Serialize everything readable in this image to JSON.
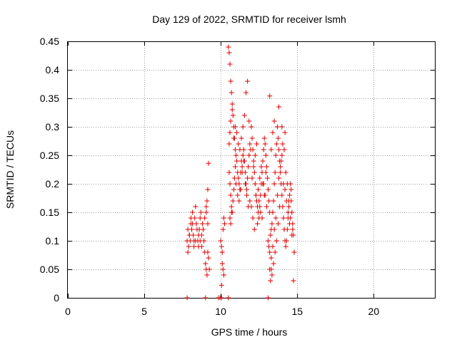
{
  "chart_data": {
    "type": "scatter",
    "title": "Day 129 of 2022, SRMTID for receiver lsmh",
    "xlabel": "GPS time / hours",
    "ylabel": "SRMTID / TECUs",
    "xlim": [
      0,
      24
    ],
    "ylim": [
      0,
      0.45
    ],
    "xticks": [
      0,
      5,
      10,
      15,
      20
    ],
    "yticks": [
      0,
      0.05,
      0.1,
      0.15,
      0.2,
      0.25,
      0.3,
      0.35,
      0.4,
      0.45
    ],
    "xtick_labels": [
      "0",
      "5",
      "10",
      "15",
      "20"
    ],
    "ytick_labels": [
      "0",
      "0.05",
      "0.1",
      "0.15",
      "0.2",
      "0.25",
      "0.3",
      "0.35",
      "0.4",
      "0.45"
    ],
    "grid": true,
    "marker": "+",
    "color": "#e00000",
    "series": [
      {
        "name": "SRMTID",
        "x": [
          7.8,
          7.85,
          7.9,
          7.95,
          8.0,
          8.05,
          8.1,
          8.15,
          8.2,
          8.25,
          8.3,
          8.35,
          8.4,
          8.45,
          8.5,
          8.55,
          8.6,
          8.65,
          8.7,
          8.75,
          8.8,
          8.85,
          8.9,
          8.95,
          9.0,
          9.05,
          9.1,
          9.15,
          9.2,
          9.25,
          7.85,
          7.95,
          8.05,
          8.15,
          8.25,
          8.35,
          8.45,
          8.55,
          8.65,
          8.75,
          8.85,
          8.95,
          9.05,
          9.1,
          9.15,
          9.2,
          9.05,
          9.15,
          10.0,
          10.05,
          10.1,
          10.15,
          10.2,
          10.25,
          10.1,
          10.15,
          10.2,
          10.05,
          10.5,
          10.55,
          10.6,
          10.65,
          10.7,
          10.75,
          10.8,
          10.85,
          10.9,
          10.95,
          11.0,
          11.05,
          11.1,
          11.15,
          11.2,
          11.25,
          11.3,
          11.35,
          11.4,
          11.45,
          11.5,
          11.55,
          11.6,
          11.65,
          11.7,
          11.75,
          11.8,
          11.85,
          11.9,
          11.95,
          10.55,
          10.6,
          10.65,
          10.7,
          10.75,
          10.8,
          10.85,
          10.9,
          10.95,
          11.0,
          11.1,
          11.2,
          11.3,
          11.4,
          11.5,
          11.6,
          11.7,
          11.8,
          11.9,
          10.6,
          10.65,
          10.7,
          10.55,
          10.6,
          10.65,
          10.75,
          10.85,
          10.95,
          11.05,
          11.15,
          11.25,
          11.35,
          11.45,
          11.55,
          11.65,
          11.75,
          11.85,
          12.0,
          12.05,
          12.1,
          12.15,
          12.2,
          12.25,
          12.3,
          12.35,
          12.4,
          12.45,
          12.5,
          12.55,
          12.6,
          12.65,
          12.7,
          12.75,
          12.8,
          12.85,
          12.9,
          12.95,
          13.0,
          13.05,
          13.1,
          13.15,
          13.2,
          12.0,
          12.1,
          12.2,
          12.3,
          12.4,
          12.5,
          12.6,
          12.7,
          12.8,
          12.9,
          13.0,
          13.1,
          12.05,
          12.15,
          12.25,
          12.35,
          12.45,
          12.55,
          12.65,
          12.75,
          12.85,
          12.95,
          13.1,
          13.15,
          13.2,
          13.25,
          13.3,
          13.35,
          13.4,
          13.45,
          13.5,
          13.55,
          13.6,
          13.65,
          13.7,
          13.75,
          13.8,
          13.85,
          13.9,
          13.95,
          14.0,
          14.05,
          14.1,
          14.15,
          14.2,
          14.25,
          14.3,
          14.35,
          14.4,
          14.45,
          14.5,
          14.55,
          14.6,
          14.65,
          14.7,
          14.75,
          14.8,
          13.2,
          13.3,
          13.4,
          13.5,
          13.6,
          13.7,
          13.8,
          13.9,
          14.0,
          14.1,
          14.2,
          14.3,
          14.4,
          14.5,
          14.6,
          14.7,
          13.25,
          13.35,
          13.45,
          13.55,
          13.65,
          13.75,
          13.85,
          13.95,
          14.05,
          14.15,
          14.25,
          14.35,
          14.45,
          14.55,
          14.65,
          14.75,
          13.3,
          13.4,
          13.5,
          13.2,
          13.3,
          13.8,
          14.0,
          14.2,
          14.8,
          7.8,
          9.0,
          9.85,
          9.95,
          10.05,
          10.5,
          13.1
        ],
        "y": [
          0.1,
          0.12,
          0.09,
          0.11,
          0.1,
          0.13,
          0.12,
          0.15,
          0.11,
          0.1,
          0.14,
          0.16,
          0.13,
          0.12,
          0.1,
          0.09,
          0.12,
          0.14,
          0.15,
          0.11,
          0.13,
          0.12,
          0.1,
          0.08,
          0.06,
          0.05,
          0.04,
          0.08,
          0.07,
          0.05,
          0.08,
          0.11,
          0.14,
          0.13,
          0.09,
          0.1,
          0.12,
          0.11,
          0.1,
          0.09,
          0.12,
          0.14,
          0.16,
          0.17,
          0.19,
          0.236,
          0.15,
          0.13,
          0.1,
          0.09,
          0.08,
          0.12,
          0.14,
          0.13,
          0.06,
          0.05,
          0.04,
          0.022,
          0.44,
          0.43,
          0.41,
          0.38,
          0.36,
          0.34,
          0.32,
          0.3,
          0.28,
          0.26,
          0.25,
          0.24,
          0.22,
          0.21,
          0.2,
          0.19,
          0.22,
          0.24,
          0.23,
          0.25,
          0.26,
          0.24,
          0.22,
          0.2,
          0.19,
          0.21,
          0.23,
          0.25,
          0.27,
          0.26,
          0.22,
          0.2,
          0.18,
          0.16,
          0.15,
          0.17,
          0.19,
          0.21,
          0.23,
          0.2,
          0.18,
          0.17,
          0.19,
          0.22,
          0.24,
          0.2,
          0.18,
          0.16,
          0.17,
          0.14,
          0.13,
          0.15,
          0.27,
          0.29,
          0.31,
          0.33,
          0.28,
          0.3,
          0.29,
          0.27,
          0.26,
          0.28,
          0.3,
          0.32,
          0.36,
          0.38,
          0.31,
          0.3,
          0.28,
          0.26,
          0.24,
          0.22,
          0.2,
          0.18,
          0.17,
          0.16,
          0.15,
          0.14,
          0.16,
          0.18,
          0.2,
          0.22,
          0.24,
          0.26,
          0.28,
          0.27,
          0.25,
          0.23,
          0.21,
          0.19,
          0.17,
          0.15,
          0.16,
          0.14,
          0.12,
          0.18,
          0.13,
          0.17,
          0.15,
          0.14,
          0.2,
          0.18,
          0.16,
          0.19,
          0.21,
          0.23,
          0.25,
          0.27,
          0.19,
          0.21,
          0.23,
          0.2,
          0.18,
          0.22,
          0.1,
          0.09,
          0.08,
          0.11,
          0.12,
          0.13,
          0.15,
          0.17,
          0.2,
          0.22,
          0.25,
          0.27,
          0.3,
          0.28,
          0.26,
          0.24,
          0.22,
          0.2,
          0.18,
          0.16,
          0.14,
          0.12,
          0.1,
          0.09,
          0.1,
          0.12,
          0.14,
          0.16,
          0.18,
          0.2,
          0.17,
          0.15,
          0.13,
          0.11,
          0.08,
          0.05,
          0.07,
          0.09,
          0.12,
          0.14,
          0.18,
          0.21,
          0.23,
          0.25,
          0.2,
          0.19,
          0.17,
          0.15,
          0.13,
          0.19,
          0.12,
          0.03,
          0.04,
          0.06,
          0.08,
          0.1,
          0.13,
          0.16,
          0.24,
          0.27,
          0.26,
          0.22,
          0.2,
          0.17,
          0.14,
          0.11,
          0.03,
          0.26,
          0.29,
          0.31,
          0.354,
          0.05,
          0.335,
          0.3,
          0.29,
          0.08,
          0.0,
          0.0,
          0.0,
          0.0,
          0.0,
          0.0,
          0.0
        ]
      }
    ]
  }
}
